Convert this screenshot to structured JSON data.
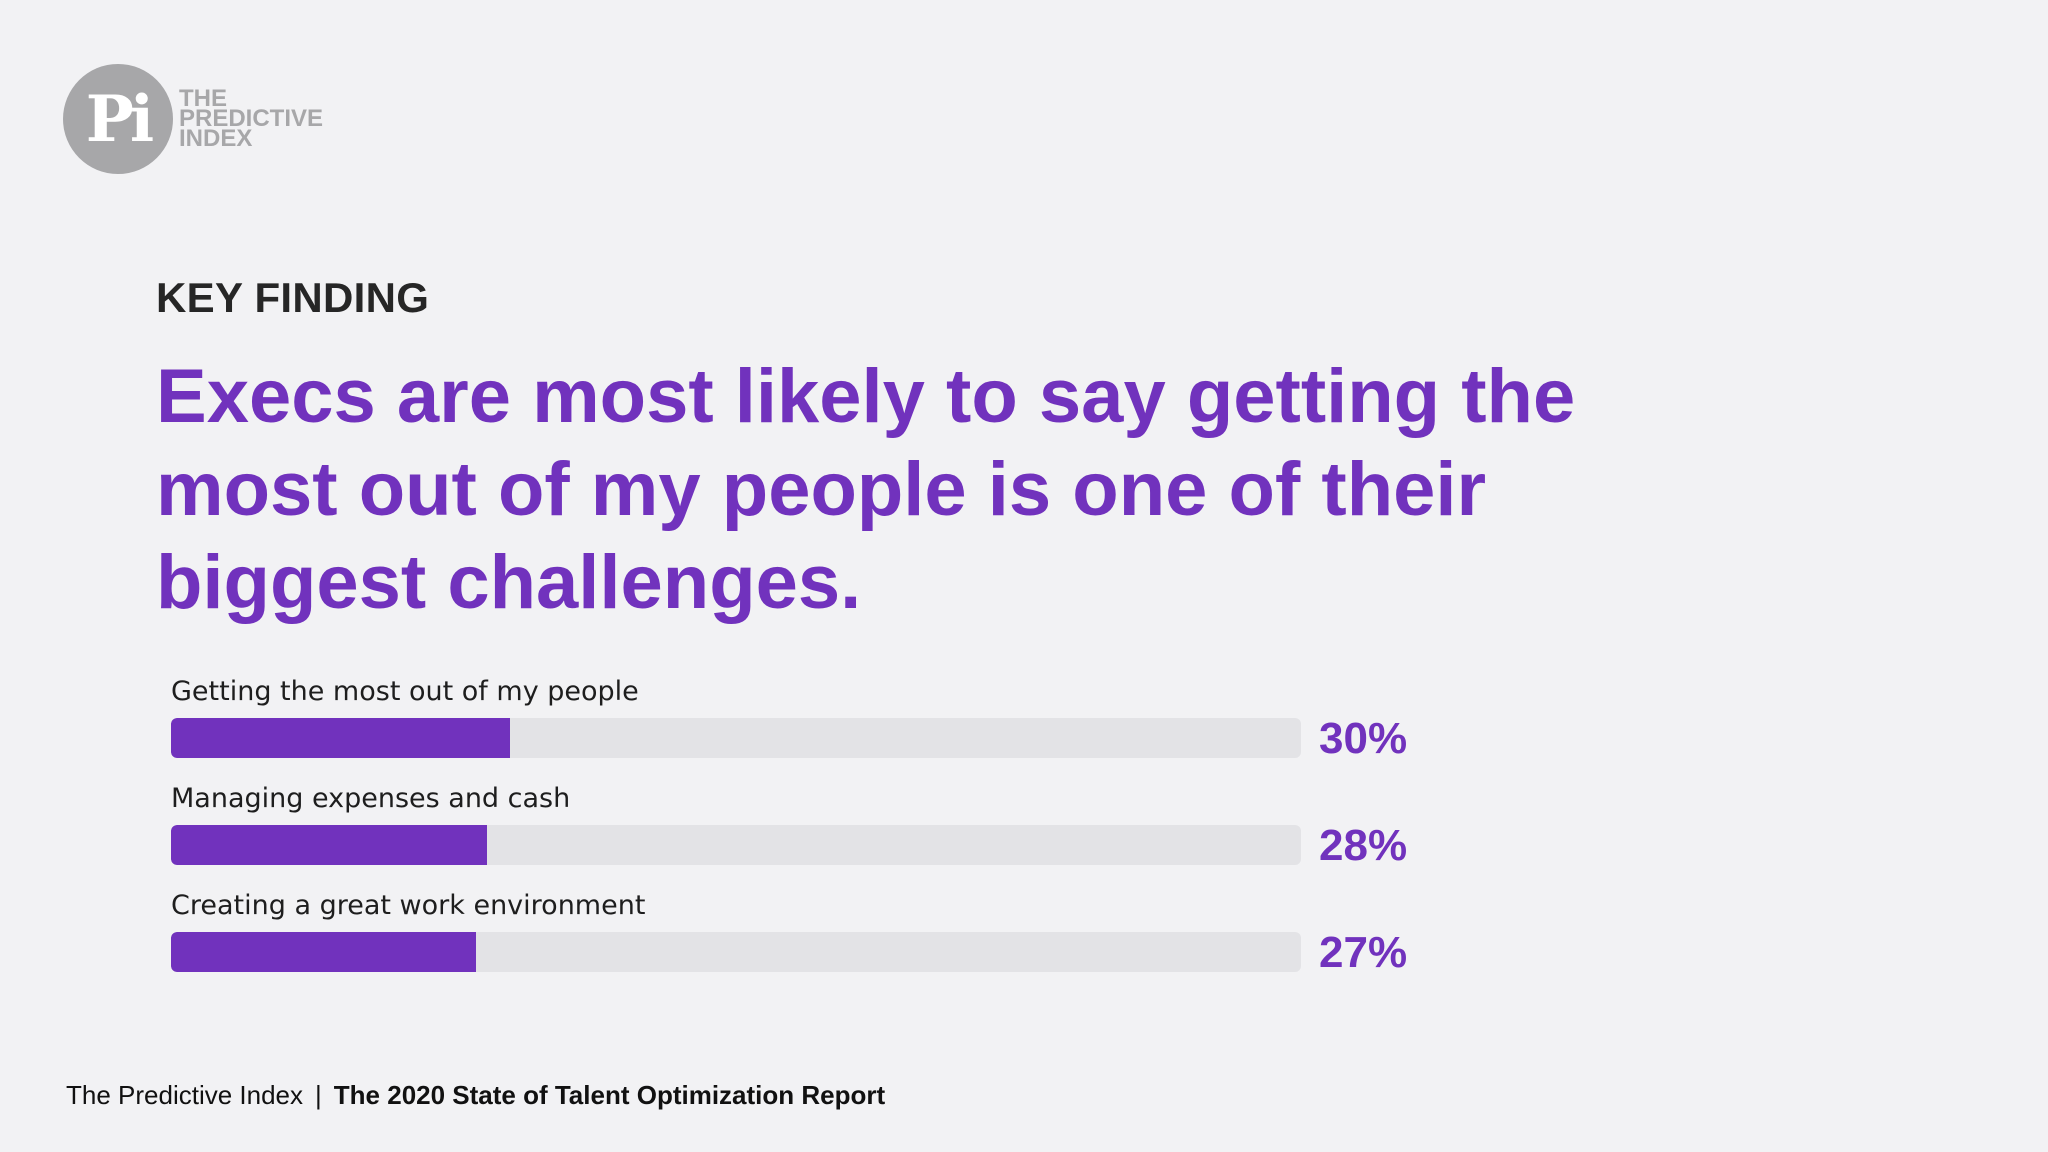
{
  "logo": {
    "mark": "Pi",
    "lines": [
      "THE",
      "PREDICTIVE",
      "INDEX"
    ]
  },
  "kicker": "KEY FINDING",
  "headline": "Execs are most likely to say getting the most out of my people is one of their biggest challenges.",
  "chart_data": {
    "type": "bar",
    "orientation": "horizontal",
    "categories": [
      "Getting the most out of my people",
      "Managing expenses and cash",
      "Creating a great work environment"
    ],
    "values": [
      30,
      28,
      27
    ],
    "value_labels": [
      "30%",
      "28%",
      "27%"
    ],
    "xlim": [
      0,
      100
    ],
    "grid": false,
    "colors": {
      "fill": "#7132bd",
      "track": "#e3e3e6"
    }
  },
  "footer": {
    "org": "The Predictive Index",
    "separator": "|",
    "report": "The 2020 State of Talent Optimization Report"
  }
}
